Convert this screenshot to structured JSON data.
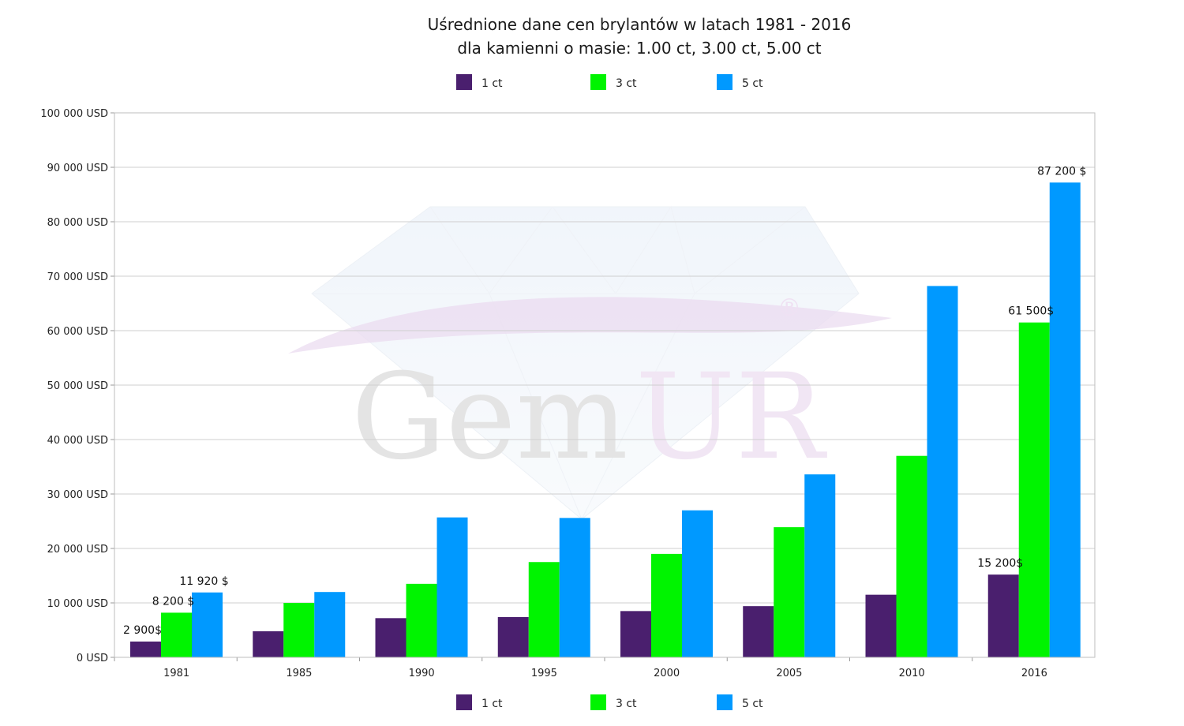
{
  "chart_data": {
    "type": "bar",
    "title": "Uśrednione dane cen brylantów w latach 1981 - 2016",
    "subtitle": "dla kamienni o masie: 1.00 ct, 3.00 ct, 5.00 ct",
    "watermark": "GemUR®",
    "categories": [
      "1981",
      "1985",
      "1990",
      "1995",
      "2000",
      "2005",
      "2010",
      "2016"
    ],
    "series": [
      {
        "name": "1 ct",
        "color": "#4a1f6e",
        "values": [
          2900,
          4800,
          7200,
          7400,
          8500,
          9400,
          11500,
          15200
        ]
      },
      {
        "name": "3 ct",
        "color": "#00f400",
        "values": [
          8200,
          10000,
          13500,
          17500,
          19000,
          23900,
          37000,
          61500
        ]
      },
      {
        "name": "5 ct",
        "color": "#0099ff",
        "values": [
          11920,
          12000,
          25700,
          25600,
          27000,
          33600,
          68200,
          87200
        ]
      }
    ],
    "y_ticks": [
      "0 USD",
      "10 000 USD",
      "20 000 USD",
      "30 000 USD",
      "40 000 USD",
      "50 000 USD",
      "60 000 USD",
      "70 000 USD",
      "80 000 USD",
      "90 000 USD",
      "100 000 USD"
    ],
    "ylim": [
      0,
      100000
    ],
    "grid": true,
    "legend": [
      "top",
      "bottom"
    ],
    "data_labels": [
      {
        "category": "1981",
        "series": "1 ct",
        "text": "2 900$"
      },
      {
        "category": "1981",
        "series": "3 ct",
        "text": "8 200 $"
      },
      {
        "category": "1981",
        "series": "5 ct",
        "text": "11 920 $"
      },
      {
        "category": "2016",
        "series": "1 ct",
        "text": "15 200$"
      },
      {
        "category": "2016",
        "series": "3 ct",
        "text": "61 500$"
      },
      {
        "category": "2016",
        "series": "5 ct",
        "text": "87 200 $"
      }
    ]
  }
}
